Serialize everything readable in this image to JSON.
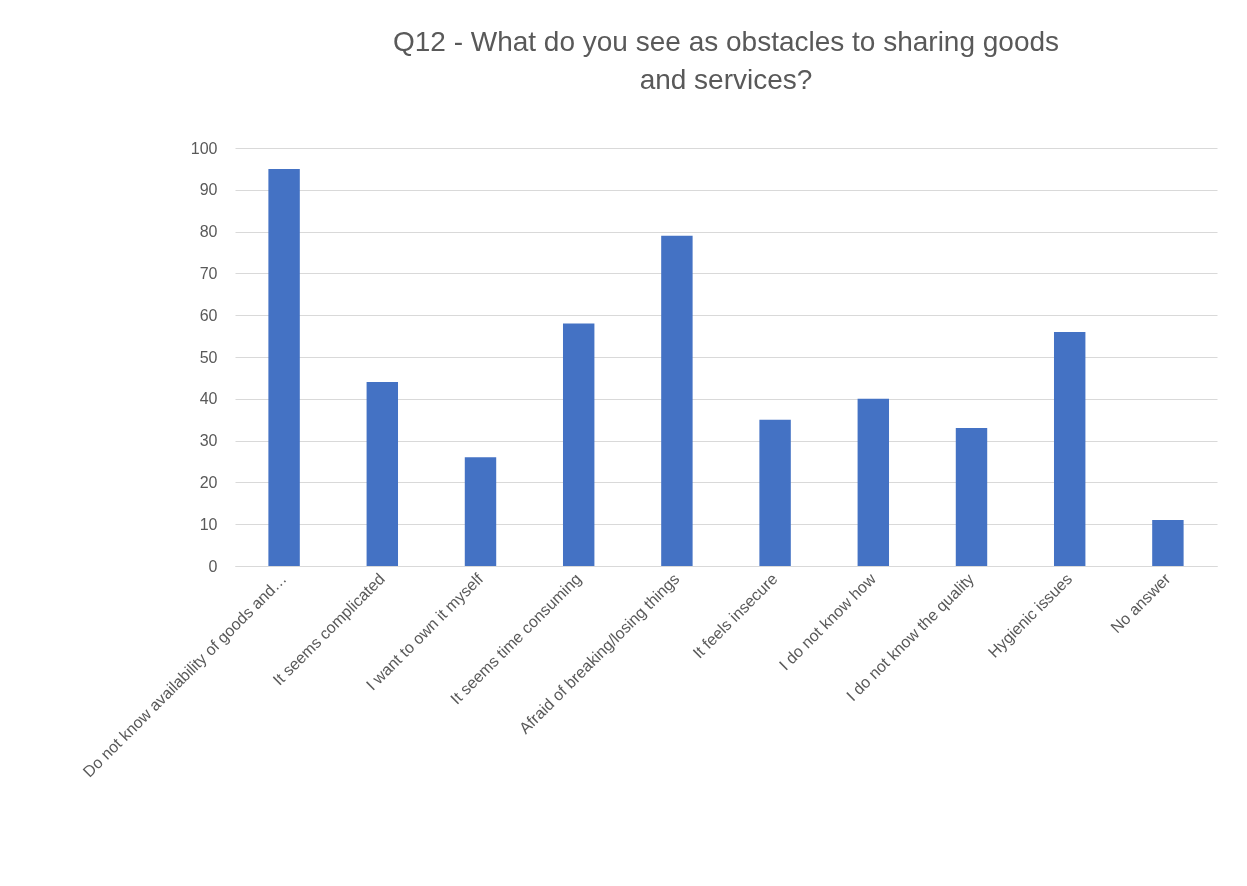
{
  "chart_data": {
    "type": "bar",
    "title": "Q12 - What do you see as obstacles to sharing goods and services?",
    "categories": [
      "Do not know availability of goods and…",
      "It seems complicated",
      "I want to own it myself",
      "It seems time consuming",
      "Afraid of breaking/losing things",
      "It feels insecure",
      "I do not know how",
      "I do not know the quality",
      "Hygienic issues",
      "No answer"
    ],
    "values": [
      95,
      44,
      26,
      58,
      79,
      35,
      40,
      33,
      56,
      11
    ],
    "color": "#4472c4",
    "ylim": [
      0,
      100
    ],
    "yticks": [
      0,
      10,
      20,
      30,
      40,
      50,
      60,
      70,
      80,
      90,
      100
    ],
    "grid": "y"
  }
}
